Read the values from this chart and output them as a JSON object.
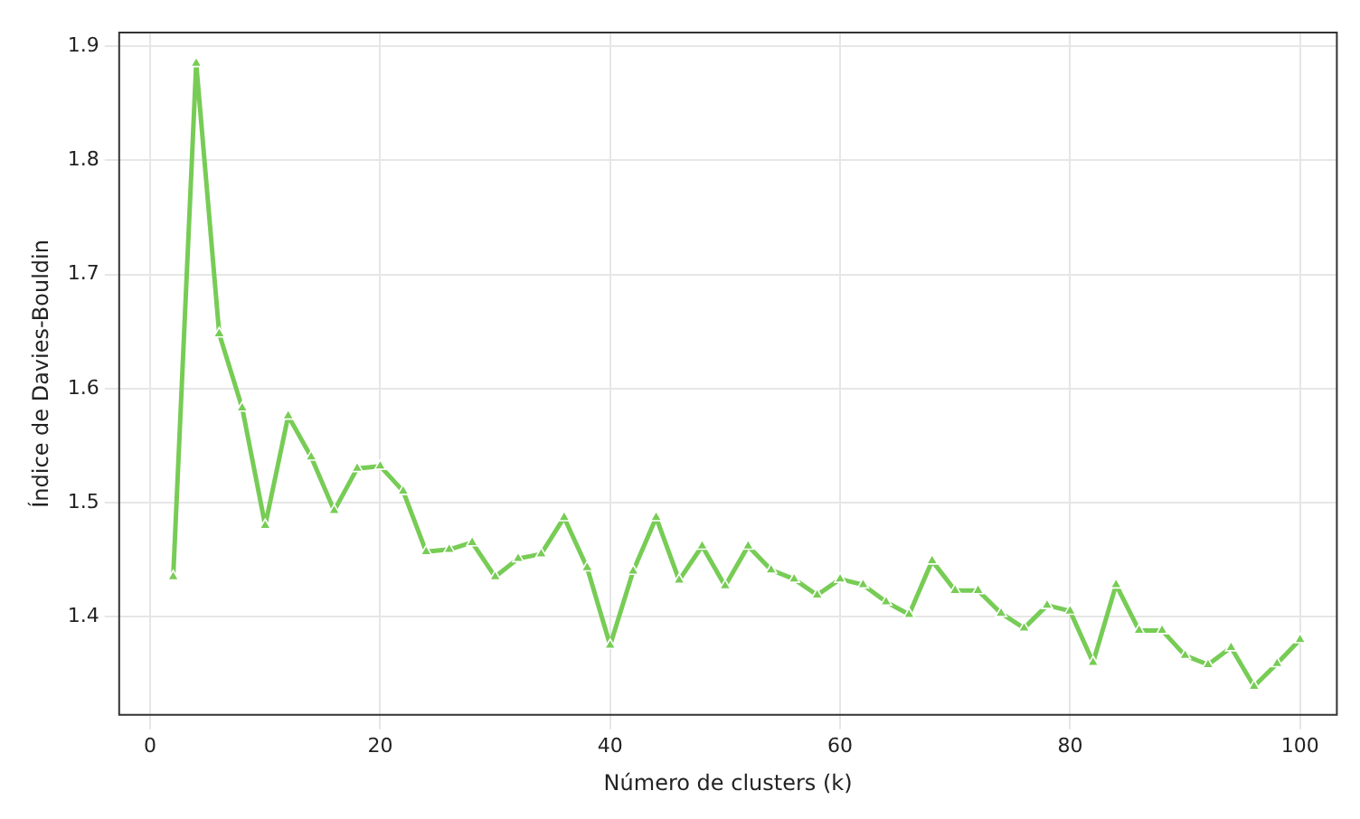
{
  "chart_data": {
    "type": "line",
    "xlabel": "Número de clusters (k)",
    "ylabel": "Índice de Davies-Bouldin",
    "x": [
      2,
      4,
      6,
      8,
      10,
      12,
      14,
      16,
      18,
      20,
      22,
      24,
      26,
      28,
      30,
      32,
      34,
      36,
      38,
      40,
      42,
      44,
      46,
      48,
      50,
      52,
      54,
      56,
      58,
      60,
      62,
      64,
      66,
      68,
      70,
      72,
      74,
      76,
      78,
      80,
      82,
      84,
      86,
      88,
      90,
      92,
      94,
      96,
      98,
      100
    ],
    "series": [
      {
        "color": "#77cc55",
        "values": [
          1.435,
          1.885,
          1.648,
          1.583,
          1.48,
          1.576,
          1.54,
          1.493,
          1.53,
          1.532,
          1.51,
          1.457,
          1.459,
          1.465,
          1.435,
          1.451,
          1.455,
          1.487,
          1.443,
          1.375,
          1.44,
          1.487,
          1.432,
          1.462,
          1.427,
          1.462,
          1.441,
          1.433,
          1.419,
          1.433,
          1.428,
          1.413,
          1.402,
          1.449,
          1.423,
          1.423,
          1.403,
          1.39,
          1.41,
          1.405,
          1.36,
          1.428,
          1.388,
          1.388,
          1.366,
          1.358,
          1.373,
          1.339,
          1.359,
          1.38
        ]
      }
    ],
    "xlim": [
      -2.7,
      103.2
    ],
    "xticks": [
      0,
      20,
      40,
      60,
      80,
      100
    ],
    "ylim": [
      1.314,
      1.912
    ],
    "yticks": [
      1.4,
      1.5,
      1.6,
      1.7,
      1.8,
      1.9
    ],
    "grid": true,
    "legend": false,
    "marker": "triangle",
    "line_style": "solid"
  }
}
